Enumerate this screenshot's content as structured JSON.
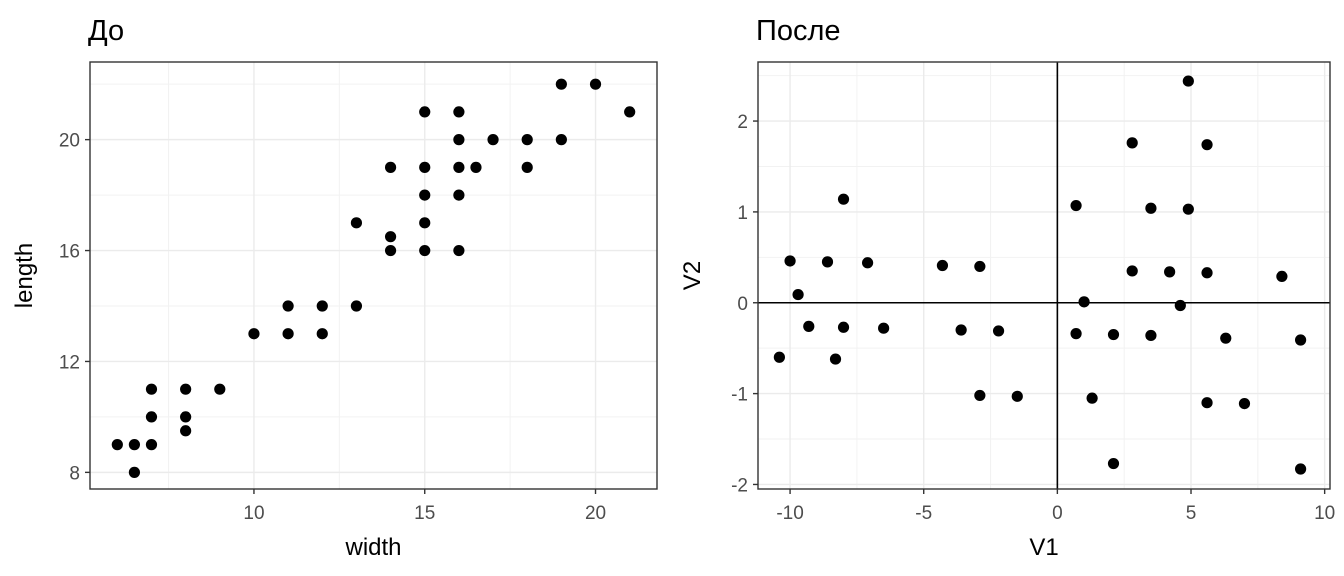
{
  "chart_data": [
    {
      "type": "scatter",
      "title": "До",
      "xlabel": "width",
      "ylabel": "length",
      "xlim": [
        5.2,
        21.8
      ],
      "ylim": [
        7.4,
        22.8
      ],
      "xticks": [
        10,
        15,
        20
      ],
      "xtick_labels": [
        "10",
        "15",
        "20"
      ],
      "yticks": [
        8,
        12,
        16,
        20
      ],
      "ytick_labels": [
        "8",
        "12",
        "16",
        "20"
      ],
      "grid": true,
      "zero_lines": false,
      "point_color": "#000000",
      "points": [
        {
          "x": 6,
          "y": 9
        },
        {
          "x": 6.5,
          "y": 9
        },
        {
          "x": 6.5,
          "y": 8
        },
        {
          "x": 7,
          "y": 11
        },
        {
          "x": 7,
          "y": 10
        },
        {
          "x": 7,
          "y": 9
        },
        {
          "x": 8,
          "y": 11
        },
        {
          "x": 8,
          "y": 10
        },
        {
          "x": 8,
          "y": 9.5
        },
        {
          "x": 9,
          "y": 11
        },
        {
          "x": 10,
          "y": 13
        },
        {
          "x": 11,
          "y": 14
        },
        {
          "x": 11,
          "y": 13
        },
        {
          "x": 12,
          "y": 14
        },
        {
          "x": 12,
          "y": 13
        },
        {
          "x": 13,
          "y": 17
        },
        {
          "x": 13,
          "y": 14
        },
        {
          "x": 14,
          "y": 19
        },
        {
          "x": 14,
          "y": 16.5
        },
        {
          "x": 14,
          "y": 16
        },
        {
          "x": 15,
          "y": 21
        },
        {
          "x": 15,
          "y": 19
        },
        {
          "x": 15,
          "y": 18
        },
        {
          "x": 15,
          "y": 17
        },
        {
          "x": 15,
          "y": 16
        },
        {
          "x": 16,
          "y": 21
        },
        {
          "x": 16,
          "y": 20
        },
        {
          "x": 16,
          "y": 19
        },
        {
          "x": 16,
          "y": 18
        },
        {
          "x": 16,
          "y": 16
        },
        {
          "x": 16.5,
          "y": 19
        },
        {
          "x": 17,
          "y": 20
        },
        {
          "x": 18,
          "y": 20
        },
        {
          "x": 18,
          "y": 19
        },
        {
          "x": 19,
          "y": 22
        },
        {
          "x": 19,
          "y": 20
        },
        {
          "x": 20,
          "y": 22
        },
        {
          "x": 21,
          "y": 21
        }
      ]
    },
    {
      "type": "scatter",
      "title": "После",
      "xlabel": "V1",
      "ylabel": "V2",
      "xlim": [
        -11.2,
        10.2
      ],
      "ylim": [
        -2.05,
        2.65
      ],
      "xticks": [
        -10,
        -5,
        0,
        5,
        10
      ],
      "xtick_labels": [
        "-10",
        "-5",
        "0",
        "5",
        "10"
      ],
      "yticks": [
        -2,
        -1,
        0,
        1,
        2
      ],
      "ytick_labels": [
        "-2",
        "-1",
        "0",
        "1",
        "2"
      ],
      "grid": true,
      "zero_lines": true,
      "point_color": "#000000",
      "points": [
        {
          "x": -10.4,
          "y": -0.6
        },
        {
          "x": -10.0,
          "y": 0.46
        },
        {
          "x": -9.7,
          "y": 0.09
        },
        {
          "x": -9.3,
          "y": -0.26
        },
        {
          "x": -8.6,
          "y": 0.45
        },
        {
          "x": -8.3,
          "y": -0.62
        },
        {
          "x": -8.0,
          "y": 1.14
        },
        {
          "x": -8.0,
          "y": -0.27
        },
        {
          "x": -7.1,
          "y": 0.44
        },
        {
          "x": -6.5,
          "y": -0.28
        },
        {
          "x": -4.3,
          "y": 0.41
        },
        {
          "x": -3.6,
          "y": -0.3
        },
        {
          "x": -2.9,
          "y": 0.4
        },
        {
          "x": -2.9,
          "y": -1.02
        },
        {
          "x": -2.2,
          "y": -0.31
        },
        {
          "x": -1.5,
          "y": -1.03
        },
        {
          "x": 0.7,
          "y": 1.07
        },
        {
          "x": 0.7,
          "y": -0.34
        },
        {
          "x": 1.0,
          "y": 0.01
        },
        {
          "x": 1.3,
          "y": -1.05
        },
        {
          "x": 2.1,
          "y": -0.35
        },
        {
          "x": 2.1,
          "y": -1.77
        },
        {
          "x": 2.8,
          "y": 1.76
        },
        {
          "x": 2.8,
          "y": 0.35
        },
        {
          "x": 3.5,
          "y": 1.04
        },
        {
          "x": 3.5,
          "y": -0.36
        },
        {
          "x": 4.2,
          "y": 0.34
        },
        {
          "x": 4.6,
          "y": -0.03
        },
        {
          "x": 4.9,
          "y": 2.44
        },
        {
          "x": 4.9,
          "y": 1.03
        },
        {
          "x": 5.6,
          "y": 1.74
        },
        {
          "x": 5.6,
          "y": 0.33
        },
        {
          "x": 5.6,
          "y": -1.1
        },
        {
          "x": 6.3,
          "y": -0.39
        },
        {
          "x": 7.0,
          "y": -1.11
        },
        {
          "x": 8.4,
          "y": 0.29
        },
        {
          "x": 9.1,
          "y": -0.41
        },
        {
          "x": 9.1,
          "y": -1.83
        }
      ]
    }
  ]
}
